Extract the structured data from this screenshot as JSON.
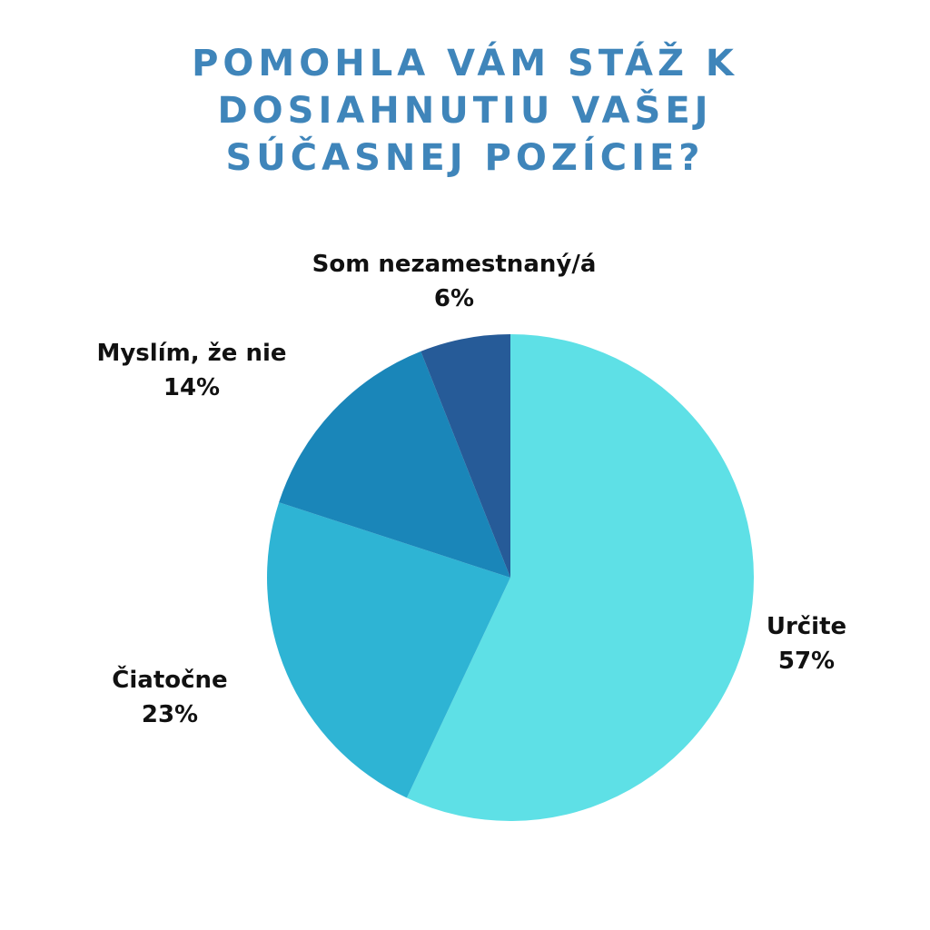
{
  "title_lines": [
    "POMOHLA VÁM STÁŽ K",
    "DOSIAHNUTIU VAŠEJ",
    "SÚČASNEJ POZÍCIE?"
  ],
  "colors": {
    "title": "#3f85ba",
    "label_text": "#111111",
    "background": "#ffffff"
  },
  "chart_data": {
    "type": "pie",
    "title": "POMOHLA VÁM STÁŽ K DOSIAHNUTIU VAŠEJ SÚČASNEJ POZÍCIE?",
    "start_angle": "top, clockwise",
    "slices": [
      {
        "label": "Určite",
        "value": 57,
        "value_label": "57%",
        "color": "#5ee0e6"
      },
      {
        "label": "Čiatočne",
        "value": 23,
        "value_label": "23%",
        "color": "#2eb4d4"
      },
      {
        "label": "Myslím, že nie",
        "value": 14,
        "value_label": "14%",
        "color": "#1a86b9"
      },
      {
        "label": "Som nezamestnaný/á",
        "value": 6,
        "value_label": "6%",
        "color": "#265b98"
      }
    ]
  }
}
